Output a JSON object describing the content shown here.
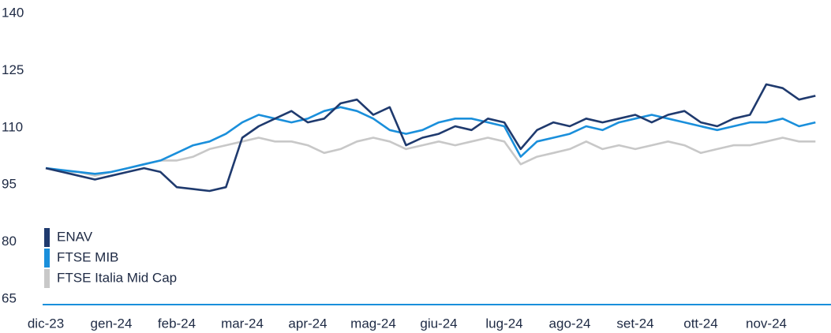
{
  "chart_data": {
    "type": "line",
    "categories": [
      "dic-23",
      null,
      null,
      null,
      "gen-24",
      null,
      null,
      null,
      "feb-24",
      null,
      null,
      null,
      "mar-24",
      null,
      null,
      null,
      "apr-24",
      null,
      null,
      null,
      "mag-24",
      null,
      null,
      null,
      "giu-24",
      null,
      null,
      null,
      "lug-24",
      null,
      null,
      null,
      "ago-24",
      null,
      null,
      null,
      "set-24",
      null,
      null,
      null,
      "ott-24",
      null,
      null,
      null,
      "nov-24",
      null,
      null,
      null
    ],
    "series": [
      {
        "name": "ENAV",
        "color": "#1f3a6e",
        "values": [
          100,
          99,
          98,
          97,
          98,
          99,
          100,
          99,
          95,
          94.5,
          94,
          95,
          108,
          111,
          113,
          115,
          112,
          113,
          117,
          118,
          114,
          116,
          106,
          108,
          109,
          111,
          110,
          113,
          112,
          105,
          110,
          112,
          111,
          113,
          112,
          113,
          114,
          112,
          114,
          115,
          112,
          111,
          113,
          114,
          122,
          121,
          118,
          119
        ]
      },
      {
        "name": "FTSE MIB",
        "color": "#1a8fdb",
        "values": [
          100,
          99.5,
          99,
          98.5,
          99,
          100,
          101,
          102,
          104,
          106,
          107,
          109,
          112,
          114,
          113,
          112,
          113,
          115,
          116,
          115,
          113,
          110,
          109,
          110,
          112,
          113,
          113,
          112,
          111,
          103,
          107,
          108,
          109,
          111,
          110,
          112,
          113,
          114,
          113,
          112,
          111,
          110,
          111,
          112,
          112,
          113,
          111,
          112
        ]
      },
      {
        "name": "FTSE Italia Mid Cap",
        "color": "#c8c8c8",
        "values": [
          100,
          99,
          99,
          98,
          99,
          100,
          101,
          102,
          102,
          103,
          105,
          106,
          107,
          108,
          107,
          107,
          106,
          104,
          105,
          107,
          108,
          107,
          105,
          106,
          107,
          106,
          107,
          108,
          107,
          101,
          103,
          104,
          105,
          107,
          105,
          106,
          105,
          106,
          107,
          106,
          104,
          105,
          106,
          106,
          107,
          108,
          107,
          107
        ]
      }
    ],
    "ylim": [
      65,
      140
    ],
    "yticks": [
      65,
      80,
      95,
      110,
      125,
      140
    ],
    "axis_color": "#1a8fdb"
  }
}
